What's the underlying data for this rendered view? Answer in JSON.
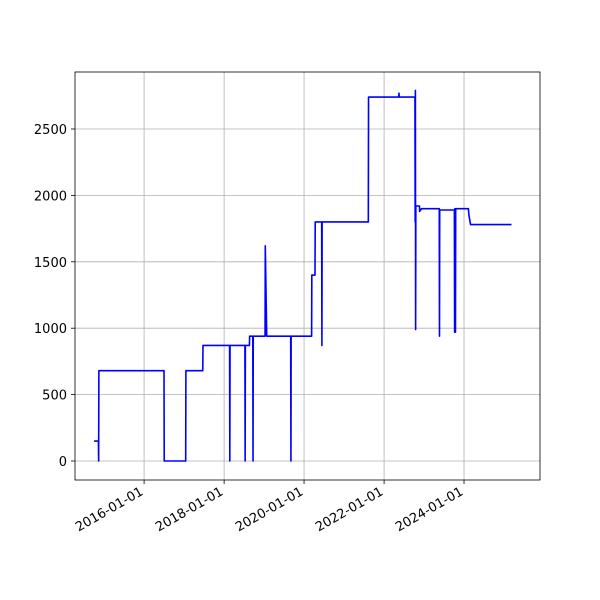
{
  "chart_data": {
    "type": "line",
    "color": "#0000ff",
    "grid": true,
    "x": [
      "2014-10-01",
      "2014-11-10",
      "2014-11-12",
      "2014-11-14",
      "2016-07-01",
      "2016-07-03",
      "2017-01-15",
      "2017-01-17",
      "2017-06-20",
      "2017-06-22",
      "2018-02-20",
      "2018-02-22",
      "2018-02-24",
      "2018-07-10",
      "2018-07-12",
      "2018-07-14",
      "2018-08-20",
      "2018-08-22",
      "2018-09-20",
      "2018-09-22",
      "2018-09-24",
      "2019-01-10",
      "2019-01-12",
      "2019-01-25",
      "2019-09-01",
      "2019-09-03",
      "2019-09-05",
      "2020-03-10",
      "2020-03-12",
      "2020-04-10",
      "2020-04-12",
      "2020-06-10",
      "2020-06-12",
      "2020-06-14",
      "2021-08-10",
      "2021-08-12",
      "2022-05-15",
      "2022-05-17",
      "2022-05-19",
      "2022-10-10",
      "2022-10-12",
      "2022-10-14",
      "2022-10-16",
      "2022-10-18",
      "2022-11-20",
      "2022-11-22",
      "2022-12-10",
      "2023-05-20",
      "2023-05-22",
      "2023-05-24",
      "2023-10-05",
      "2023-10-07",
      "2023-10-09",
      "2023-10-15",
      "2023-10-17",
      "2024-02-10",
      "2024-02-15",
      "2024-03-01",
      "2025-03-10"
    ],
    "values": [
      150,
      150,
      0,
      680,
      680,
      0,
      0,
      680,
      680,
      870,
      870,
      0,
      870,
      870,
      0,
      870,
      870,
      940,
      940,
      0,
      940,
      940,
      1620,
      940,
      940,
      0,
      940,
      940,
      1400,
      1400,
      1800,
      1800,
      870,
      1800,
      1800,
      2740,
      2740,
      2770,
      2740,
      2740,
      1800,
      2790,
      990,
      1920,
      1920,
      1880,
      1900,
      1900,
      940,
      1890,
      1890,
      970,
      1900,
      970,
      1900,
      1900,
      1850,
      1780,
      1780
    ],
    "xlim": [
      "2014-04-10",
      "2025-11-25"
    ],
    "xticks": [
      "2016-01-01",
      "2018-01-01",
      "2020-01-01",
      "2022-01-01",
      "2024-01-01"
    ],
    "ylim": [
      -143,
      2929
    ],
    "yticks": [
      0,
      500,
      1000,
      1500,
      2000,
      2500
    ]
  }
}
